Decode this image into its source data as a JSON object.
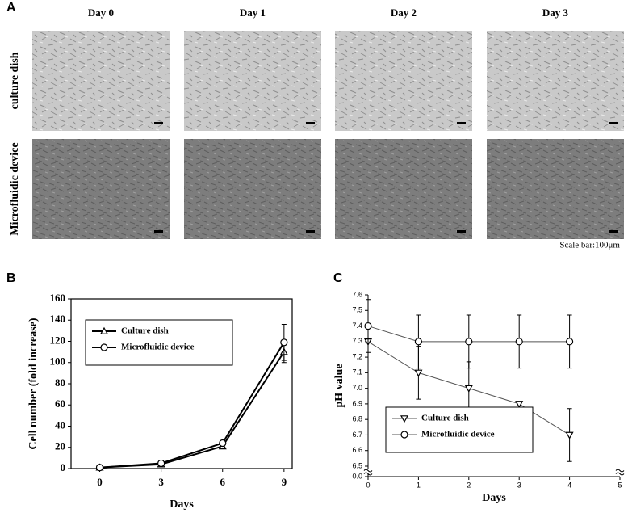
{
  "panel_labels": [
    "A",
    "B",
    "C"
  ],
  "micrographs": {
    "columns": [
      "Day 0",
      "Day 1",
      "Day 2",
      "Day 3"
    ],
    "rows": [
      "culture dish",
      "Microfluidic device"
    ],
    "scale_bar": "Scale bar:100μm"
  },
  "chart_data": [
    {
      "type": "line",
      "x_label": "Days",
      "y_label": "Cell number (fold increase)",
      "x": [
        0,
        3,
        6,
        9
      ],
      "xlim": [
        -1.4,
        9.4
      ],
      "xticks": [
        0,
        3,
        6,
        9
      ],
      "ylim": [
        0,
        160
      ],
      "yticks": [
        0,
        20,
        40,
        60,
        80,
        100,
        120,
        140,
        160
      ],
      "legend": "upper left",
      "frame": true,
      "series": [
        {
          "name": "Culture dish",
          "color": "#000000",
          "marker": "triangle",
          "values": [
            1,
            4,
            21,
            110
          ],
          "errors": [
            0.5,
            1,
            2,
            10
          ]
        },
        {
          "name": "Microfluidic device",
          "color": "#000000",
          "marker": "circle",
          "values": [
            1,
            5,
            24,
            119
          ],
          "errors": [
            0.5,
            1,
            2,
            17
          ]
        }
      ]
    },
    {
      "type": "line",
      "x_label": "Days",
      "y_label": "pH  value",
      "x": [
        0,
        1,
        2,
        3,
        4
      ],
      "xlim": [
        0,
        5
      ],
      "xticks": [
        0,
        1,
        2,
        3,
        4,
        5
      ],
      "ylim": [
        0,
        7.6
      ],
      "axis_break": [
        0,
        6.5
      ],
      "yticks": [
        {
          "value": 0,
          "label": "0.0"
        },
        6.5,
        6.6,
        6.7,
        6.8,
        6.9,
        {
          "value": 7,
          "label": "7.0"
        },
        7.1,
        7.2,
        7.3,
        7.4,
        7.5,
        7.6
      ],
      "legend": "lower left",
      "frame": false,
      "series": [
        {
          "name": "Culture dish",
          "color": "#555555",
          "marker": "triangle-down",
          "values": [
            7.3,
            7.1,
            7.0,
            6.9,
            6.7
          ],
          "errors": [
            0,
            0.17,
            0.17,
            0,
            0.17
          ]
        },
        {
          "name": "Microfluidic device",
          "color": "#555555",
          "marker": "circle",
          "values": [
            7.4,
            7.3,
            7.3,
            7.3,
            7.3
          ],
          "errors": [
            0.17,
            0.17,
            0.17,
            0.17,
            0.17
          ]
        }
      ]
    }
  ]
}
